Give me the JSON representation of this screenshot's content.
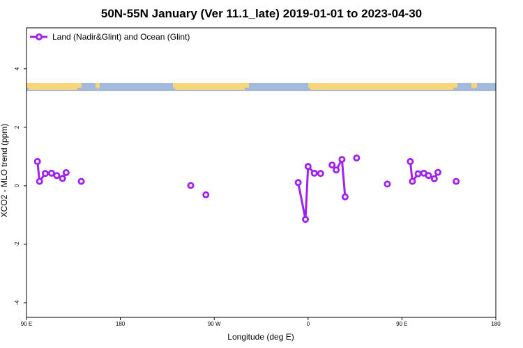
{
  "chart_data": {
    "type": "line",
    "title": "50N-55N January (Ver 11.1_late)   2019-01-01 to 2023-04-30",
    "xlabel": "Longitude (deg E)",
    "ylabel": "XCO2 - MLO trend (ppm)",
    "xlim": [
      90,
      540
    ],
    "ylim": [
      -4.5,
      5.4
    ],
    "x_ticks": [
      90,
      180,
      270,
      360,
      450,
      540
    ],
    "x_tick_labels": [
      "90 E",
      "180",
      "90 W",
      "0",
      "90 E",
      "180"
    ],
    "y_ticks": [
      -4,
      -2,
      0,
      2,
      4
    ],
    "y_tick_labels": [
      "-4",
      "-2",
      "0",
      "2",
      "4"
    ],
    "grid": false,
    "legend_position": "top-left",
    "series_color": "#a020f0",
    "land_color": "#f7d57a",
    "ocean_color": "#a4b9db",
    "series": [
      {
        "name": "Land (Nadir&Glint) and Ocean (Glint)",
        "segments": [
          [
            [
              100.5,
              0.83
            ],
            [
              102.5,
              0.15
            ],
            [
              108,
              0.42
            ],
            [
              114,
              0.43
            ],
            [
              119,
              0.35
            ],
            [
              124.5,
              0.25
            ],
            [
              128,
              0.45
            ]
          ],
          [
            [
              142.5,
              0.15
            ]
          ],
          [
            [
              247.5,
              0.01
            ]
          ],
          [
            [
              262,
              -0.31
            ]
          ],
          [
            [
              350.5,
              0.11
            ],
            [
              357.5,
              -1.15
            ],
            [
              360,
              0.66
            ],
            [
              366,
              0.43
            ],
            [
              372,
              0.42
            ]
          ],
          [
            [
              383,
              0.71
            ],
            [
              387,
              0.54
            ],
            [
              392.5,
              0.9
            ],
            [
              395.5,
              -0.38
            ]
          ],
          [
            [
              406.5,
              0.95
            ]
          ],
          [
            [
              436,
              0.06
            ]
          ],
          [
            [
              458,
              0.83
            ],
            [
              460,
              0.15
            ],
            [
              465.5,
              0.41
            ],
            [
              471,
              0.43
            ],
            [
              475.5,
              0.35
            ],
            [
              481,
              0.24
            ],
            [
              484.5,
              0.46
            ]
          ],
          [
            [
              502,
              0.15
            ]
          ]
        ]
      }
    ]
  }
}
